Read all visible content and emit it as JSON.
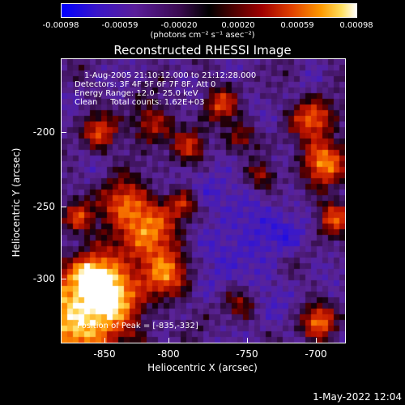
{
  "colorbar": {
    "ticks": [
      "-0.00098",
      "-0.00059",
      "-0.00020",
      "0.00020",
      "0.00059",
      "0.00098"
    ],
    "units": "(photons cm⁻² s⁻¹ asec⁻²)"
  },
  "title": "Reconstructed RHESSI Image",
  "info": {
    "time": "1-Aug-2005 21:10:12.000 to 21:12:28.000",
    "detectors": "Detectors: 3F 4F 5F 6F 7F 8F, Att 0",
    "energy": "Energy Range: 12.0 - 25.0 keV",
    "clean": "Clean     Total counts: 1.62E+03",
    "peak": "Position of Peak = [-835,-332]"
  },
  "axes": {
    "xlabel": "Heliocentric X (arcsec)",
    "ylabel": "Heliocentric Y (arcsec)",
    "xticks": [
      "-850",
      "-800",
      "-750",
      "-700"
    ],
    "yticks": [
      "-200",
      "-250",
      "-300"
    ]
  },
  "footer": "1-May-2022 12:04",
  "colors": {
    "negative": "#0000ff",
    "zero": "#000000",
    "positive_low": "#a00000",
    "positive_high": "#ffffff"
  }
}
